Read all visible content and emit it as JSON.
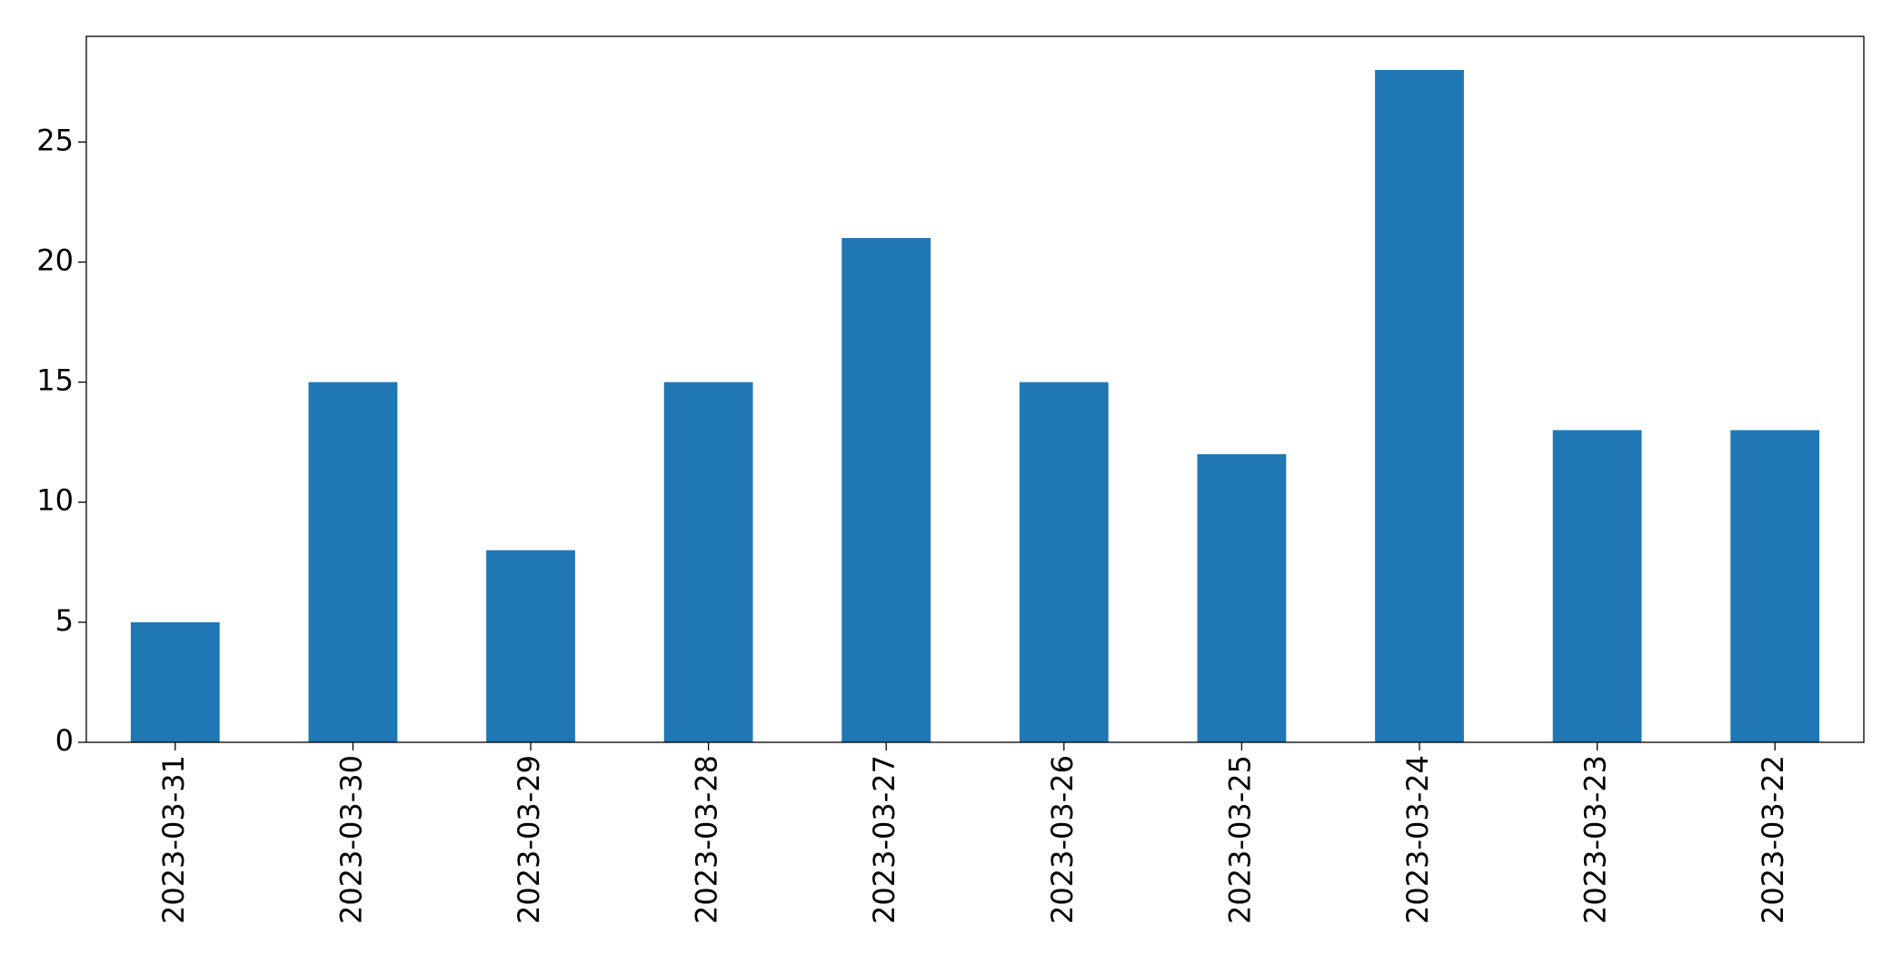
{
  "chart_data": {
    "type": "bar",
    "categories": [
      "2023-03-31",
      "2023-03-30",
      "2023-03-29",
      "2023-03-28",
      "2023-03-27",
      "2023-03-26",
      "2023-03-25",
      "2023-03-24",
      "2023-03-23",
      "2023-03-22"
    ],
    "values": [
      5,
      15,
      8,
      15,
      21,
      15,
      12,
      28,
      13,
      13
    ],
    "color": "#1f77b4",
    "ylim": [
      0,
      29.4
    ],
    "yticks": [
      0,
      5,
      10,
      15,
      20,
      25
    ],
    "grid": false
  }
}
